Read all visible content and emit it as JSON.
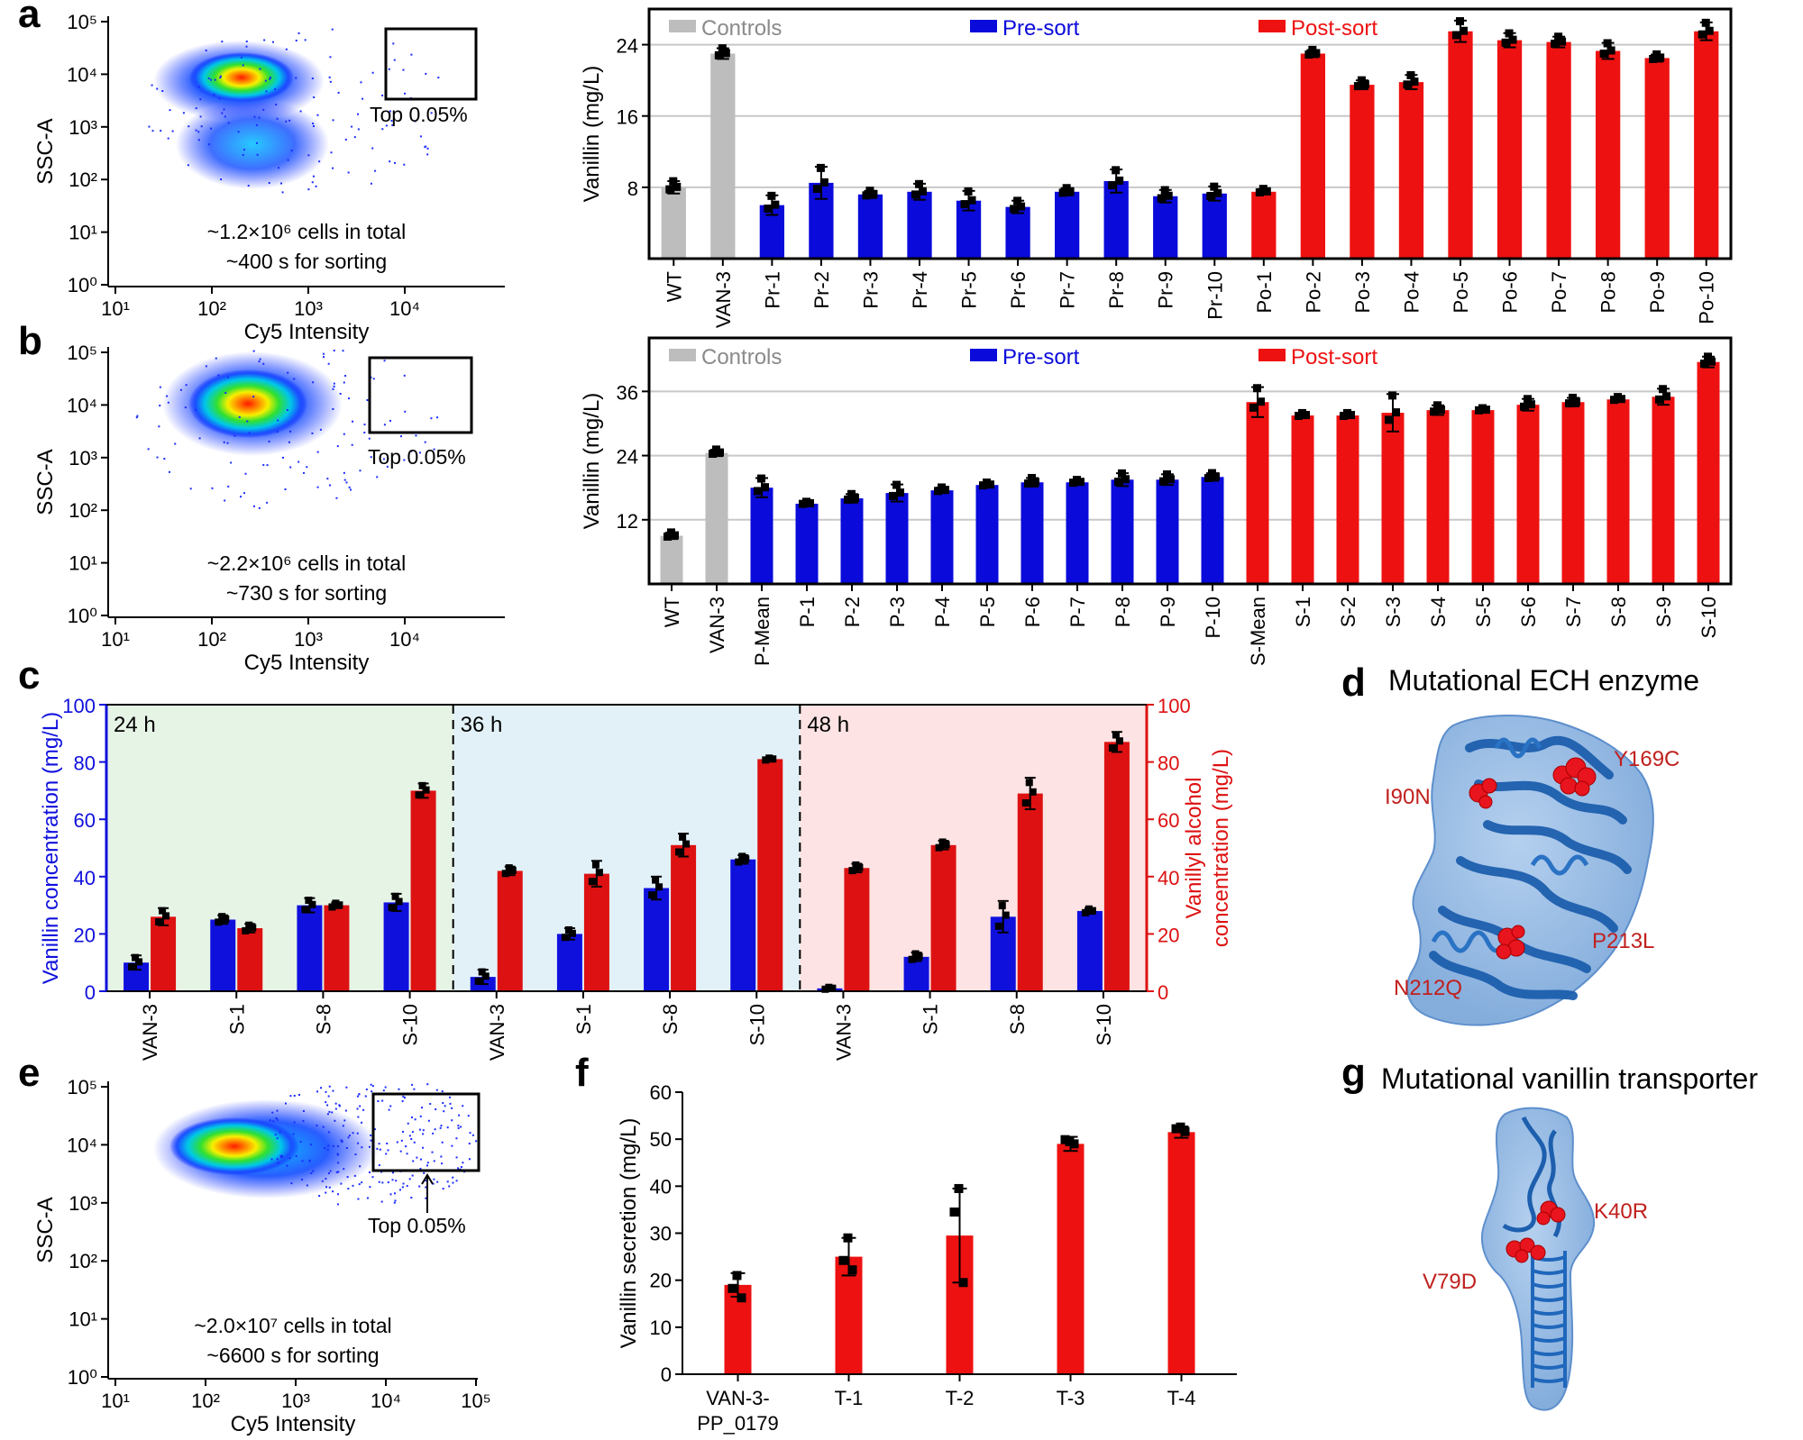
{
  "panel_labels": [
    "a",
    "b",
    "c",
    "d",
    "e",
    "f",
    "g"
  ],
  "colors": {
    "controls": "#bdbdbd",
    "presort": "#0a0adb",
    "postsort": "#ee1111",
    "c_vanillin": "#1010dd",
    "c_alcohol": "#dd1111",
    "protein": "#2f6fbf"
  },
  "chart_data": [
    {
      "id": "a_flow",
      "type": "scatter",
      "xlabel": "Cy5 Intensity",
      "ylabel": "SSC-A",
      "gate_label": "Top 0.05%",
      "note_line1": "~1.2×10⁶ cells in total",
      "note_line2": "~400 s for sorting",
      "xticks": [
        "10¹",
        "10²",
        "10³",
        "10⁴"
      ],
      "yticks": [
        "10⁰",
        "10¹",
        "10²",
        "10³",
        "10⁴",
        "10⁵"
      ]
    },
    {
      "id": "a_bar",
      "type": "bar",
      "ylabel": "Vanillin (mg/L)",
      "ylim": [
        0,
        28
      ],
      "yticks": [
        8,
        16,
        24
      ],
      "legend": [
        "Controls",
        "Pre-sort",
        "Post-sort"
      ],
      "categories": [
        "WT",
        "VAN-3",
        "Pr-1",
        "Pr-2",
        "Pr-3",
        "Pr-4",
        "Pr-5",
        "Pr-6",
        "Pr-7",
        "Pr-8",
        "Pr-9",
        "Pr-10",
        "Po-1",
        "Po-2",
        "Po-3",
        "Po-4",
        "Po-5",
        "Po-6",
        "Po-7",
        "Po-8",
        "Po-9",
        "Po-10"
      ],
      "groups": [
        "controls",
        "controls",
        "presort",
        "presort",
        "presort",
        "presort",
        "presort",
        "presort",
        "presort",
        "presort",
        "presort",
        "presort",
        "postsort",
        "postsort",
        "postsort",
        "postsort",
        "postsort",
        "postsort",
        "postsort",
        "postsort",
        "postsort",
        "postsort"
      ],
      "values": [
        8,
        23,
        6,
        8.5,
        7.2,
        7.5,
        6.5,
        5.8,
        7.5,
        8.7,
        7,
        7.3,
        7.5,
        23,
        19.5,
        19.8,
        25.5,
        24.5,
        24.3,
        23.3,
        22.5,
        25.5
      ],
      "errors": [
        0.7,
        0.6,
        1.1,
        1.8,
        0.4,
        0.9,
        1.1,
        0.7,
        0.4,
        1.3,
        0.7,
        0.8,
        0.3,
        0.4,
        0.5,
        0.8,
        1.2,
        0.8,
        0.6,
        0.9,
        0.4,
        1.0
      ]
    },
    {
      "id": "b_flow",
      "type": "scatter",
      "xlabel": "Cy5 Intensity",
      "ylabel": "SSC-A",
      "gate_label": "Top 0.05%",
      "note_line1": "~2.2×10⁶ cells in total",
      "note_line2": "~730 s for sorting",
      "xticks": [
        "10¹",
        "10²",
        "10³",
        "10⁴"
      ],
      "yticks": [
        "10⁰",
        "10¹",
        "10²",
        "10³",
        "10⁴",
        "10⁵"
      ]
    },
    {
      "id": "b_bar",
      "type": "bar",
      "ylabel": "Vanillin (mg/L)",
      "ylim": [
        0,
        46
      ],
      "yticks": [
        12,
        24,
        36
      ],
      "legend": [
        "Controls",
        "Pre-sort",
        "Post-sort"
      ],
      "categories": [
        "WT",
        "VAN-3",
        "P-Mean",
        "P-1",
        "P-2",
        "P-3",
        "P-4",
        "P-5",
        "P-6",
        "P-7",
        "P-8",
        "P-9",
        "P-10",
        "S-Mean",
        "S-1",
        "S-2",
        "S-3",
        "S-4",
        "S-5",
        "S-6",
        "S-7",
        "S-8",
        "S-9",
        "S-10"
      ],
      "groups": [
        "controls",
        "controls",
        "presort",
        "presort",
        "presort",
        "presort",
        "presort",
        "presort",
        "presort",
        "presort",
        "presort",
        "presort",
        "presort",
        "postsort",
        "postsort",
        "postsort",
        "postsort",
        "postsort",
        "postsort",
        "postsort",
        "postsort",
        "postsort",
        "postsort",
        "postsort"
      ],
      "values": [
        9,
        24.5,
        18,
        15,
        16,
        17,
        17.5,
        18.5,
        19,
        19,
        19.5,
        19.5,
        20,
        34,
        31.5,
        31.5,
        32,
        32.5,
        32.5,
        33.5,
        34,
        34.5,
        35,
        41.5
      ],
      "errors": [
        0.6,
        0.6,
        1.8,
        0.3,
        0.8,
        1.6,
        0.5,
        0.4,
        0.8,
        0.4,
        1.2,
        1.0,
        0.7,
        2.8,
        0.4,
        0.4,
        3.5,
        0.9,
        0.3,
        1.1,
        0.8,
        0.4,
        1.5,
        1.0
      ]
    },
    {
      "id": "c",
      "type": "bar",
      "ylabel_left": "Vanillin concentration (mg/L)",
      "ylabel_right_1": "Vanillyl alcohol",
      "ylabel_right_2": "concentration (mg/L)",
      "ylim": [
        0,
        100
      ],
      "yticks": [
        0,
        20,
        40,
        60,
        80,
        100
      ],
      "windows": [
        {
          "label": "24 h",
          "categories": [
            "VAN-3",
            "S-1",
            "S-8",
            "S-10"
          ],
          "vanillin": [
            10,
            25,
            30,
            31
          ],
          "vanillin_err": [
            2.5,
            1.5,
            2.5,
            3
          ],
          "alcohol": [
            26,
            22,
            30,
            70
          ],
          "alcohol_err": [
            3,
            1.5,
            1,
            2.5
          ]
        },
        {
          "label": "36 h",
          "categories": [
            "VAN-3",
            "S-1",
            "S-8",
            "S-10"
          ],
          "vanillin": [
            5,
            20,
            36,
            46
          ],
          "vanillin_err": [
            2.5,
            2,
            4,
            1.5
          ],
          "alcohol": [
            42,
            41,
            51,
            81
          ],
          "alcohol_err": [
            1.5,
            4.5,
            4,
            0.5
          ]
        },
        {
          "label": "48 h",
          "categories": [
            "VAN-3",
            "S-1",
            "S-8",
            "S-10"
          ],
          "vanillin": [
            1,
            12,
            26,
            28
          ],
          "vanillin_err": [
            0.5,
            1.5,
            5.5,
            1
          ],
          "alcohol": [
            43,
            51,
            69,
            87
          ],
          "alcohol_err": [
            1.5,
            1.5,
            5.5,
            3.5
          ]
        }
      ]
    },
    {
      "id": "e_flow",
      "type": "scatter",
      "xlabel": "Cy5 Intensity",
      "ylabel": "SSC-A",
      "gate_label": "Top 0.05%",
      "note_line1": "~2.0×10⁷ cells in total",
      "note_line2": "~6600 s for sorting",
      "xticks": [
        "10¹",
        "10²",
        "10³",
        "10⁴",
        "10⁵"
      ],
      "yticks": [
        "10⁰",
        "10¹",
        "10²",
        "10³",
        "10⁴",
        "10⁵"
      ]
    },
    {
      "id": "f",
      "type": "bar",
      "ylabel": "Vanillin secretion (mg/L)",
      "ylim": [
        0,
        60
      ],
      "yticks": [
        0,
        10,
        20,
        30,
        40,
        50,
        60
      ],
      "categories": [
        "VAN-3-",
        "T-1",
        "T-2",
        "T-3",
        "T-4"
      ],
      "category_line2": "PP_0179",
      "values": [
        19,
        25,
        29.5,
        49,
        51.5
      ],
      "errors": [
        2.5,
        4,
        10,
        1.5,
        1.2
      ]
    }
  ],
  "panel_d": {
    "title": "Mutational ECH enzyme",
    "mutations": [
      "Y169C",
      "I90N",
      "P213L",
      "N212Q"
    ]
  },
  "panel_g": {
    "title": "Mutational vanillin transporter",
    "mutations": [
      "K40R",
      "V79D"
    ]
  }
}
